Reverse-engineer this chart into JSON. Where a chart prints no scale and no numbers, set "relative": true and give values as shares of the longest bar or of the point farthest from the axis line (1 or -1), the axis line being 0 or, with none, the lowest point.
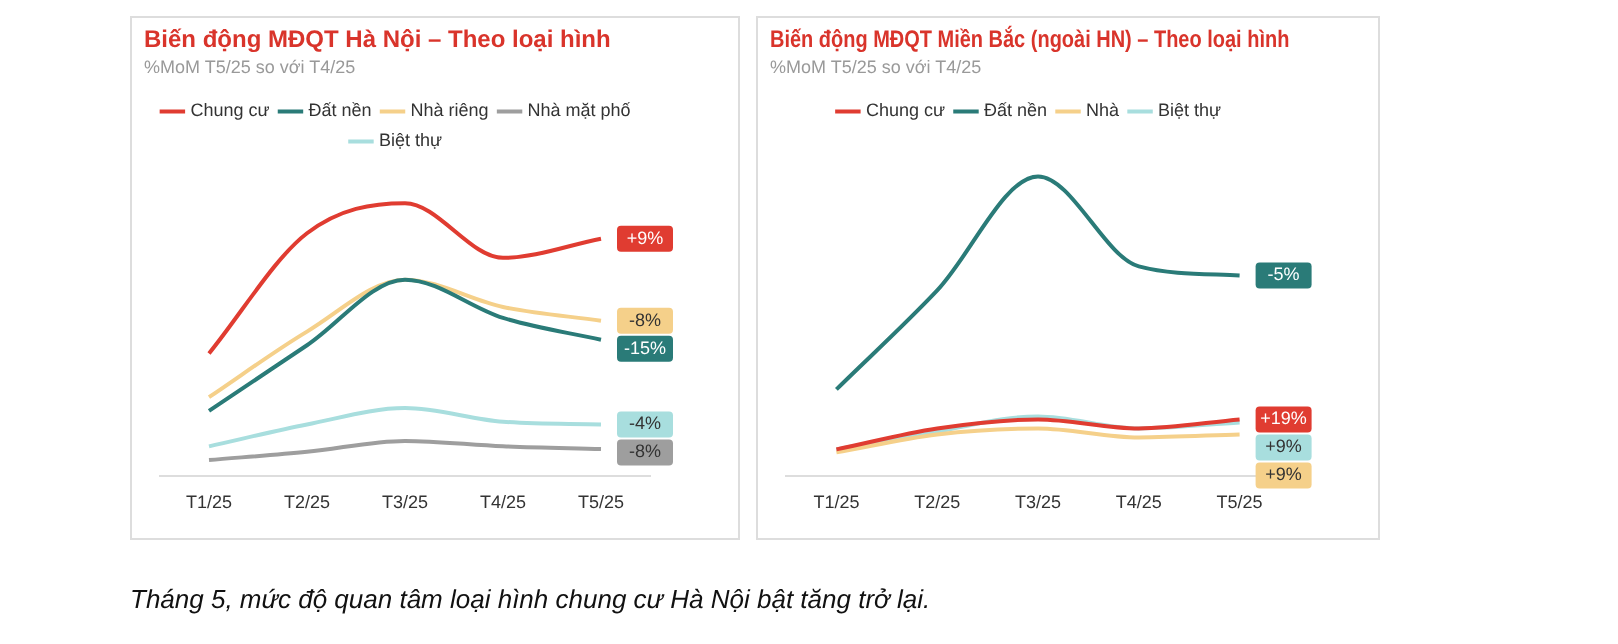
{
  "chart_data": [
    {
      "type": "line",
      "title": "Biến động MĐQT Hà Nội – Theo loại hình",
      "subtitle": "%MoM T5/25 so với T4/25",
      "relative": true,
      "legend": "top",
      "grid": false,
      "marker": "none",
      "categories": [
        "T1/25",
        "T2/25",
        "T3/25",
        "T4/25",
        "T5/25"
      ],
      "series": [
        {
          "name": "Chung cư",
          "color": "#e03c31",
          "values": [
            0.45,
            0.89,
            1,
            0.8,
            0.87
          ]
        },
        {
          "name": "Đất nền",
          "color": "#2a7b78",
          "values": [
            0.24,
            0.48,
            0.72,
            0.58,
            0.5
          ]
        },
        {
          "name": "Nhà riêng",
          "color": "#f5d08a",
          "values": [
            0.29,
            0.53,
            0.72,
            0.62,
            0.57
          ]
        },
        {
          "name": "Nhà mặt phố",
          "color": "#9e9e9e",
          "values": [
            0.06,
            0.09,
            0.13,
            0.11,
            0.1
          ]
        },
        {
          "name": "Biệt thự",
          "color": "#a8dede",
          "values": [
            0.11,
            0.19,
            0.25,
            0.2,
            0.19
          ]
        }
      ],
      "annotations": [
        {
          "text": "+9%",
          "x": "T5/25",
          "y": 0.87
        },
        {
          "text": "-15%",
          "x": "T5/25",
          "y": 0.5
        },
        {
          "text": "-8%",
          "x": "T5/25",
          "y": 0.57
        },
        {
          "text": "-8%",
          "x": "T5/25",
          "y": 0.1
        },
        {
          "text": "-4%",
          "x": "T5/25",
          "y": 0.19
        },
        "Tháng 5, mức độ quan tâm loại hình chung cư Hà Nội bật tăng trở lại."
      ]
    },
    {
      "type": "line",
      "title": "Biến động MĐQT Miền Bắc (ngoài HN) – Theo loại hình",
      "subtitle": "%MoM T5/25 so với T4/25",
      "relative": true,
      "legend": "top",
      "grid": false,
      "marker": "none",
      "categories": [
        "T1/25",
        "T2/25",
        "T3/25",
        "T4/25",
        "T5/25"
      ],
      "series": [
        {
          "name": "Chung cư",
          "color": "#e03c31",
          "values": [
            0.09,
            0.16,
            0.19,
            0.16,
            0.19
          ]
        },
        {
          "name": "Đất nền",
          "color": "#2a7b78",
          "values": [
            0.29,
            0.62,
            1,
            0.7,
            0.67
          ]
        },
        {
          "name": "Nhà",
          "color": "#f5d08a",
          "values": [
            0.08,
            0.14,
            0.16,
            0.13,
            0.14
          ]
        },
        {
          "name": "Biệt thự",
          "color": "#a8dede",
          "values": [
            0.09,
            0.15,
            0.2,
            0.16,
            0.18
          ]
        }
      ],
      "annotations": [
        {
          "text": "+19%",
          "x": "T5/25",
          "y": 0.19
        },
        {
          "text": "-5%",
          "x": "T5/25",
          "y": 0.67
        },
        {
          "text": "+9%",
          "x": "T5/25",
          "y": 0.14
        },
        {
          "text": "+9%",
          "x": "T5/25",
          "y": 0.18
        }
      ]
    }
  ]
}
